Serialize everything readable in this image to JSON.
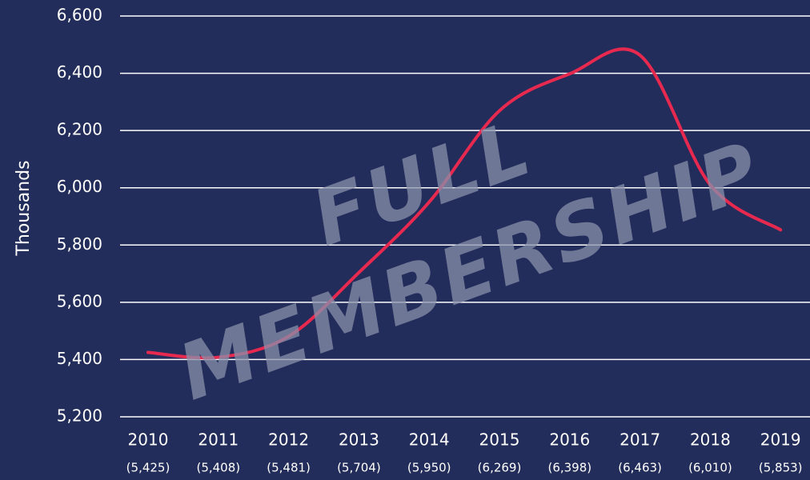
{
  "chart_data": {
    "type": "line",
    "axis_label_y": "Thousands",
    "annotations": [
      "FULL",
      "MEMBERSHIP"
    ],
    "categories": [
      "2010",
      "2011",
      "2012",
      "2013",
      "2014",
      "2015",
      "2016",
      "2017",
      "2018",
      "2019"
    ],
    "series": [
      {
        "name": "Full membership",
        "color": "#e8294f",
        "values": [
          5425,
          5408,
          5481,
          5704,
          5950,
          6269,
          6398,
          6463,
          6010,
          5853
        ],
        "value_labels": [
          "(5,425)",
          "(5,408)",
          "(5,481)",
          "(5,704)",
          "(5,950)",
          "(6,269)",
          "(6,398)",
          "(6,463)",
          "(6,010)",
          "(5,853)"
        ]
      }
    ],
    "ylim": [
      5200,
      6600
    ],
    "yticks": [
      {
        "value": 5200,
        "label": "5,200"
      },
      {
        "value": 5400,
        "label": "5,400"
      },
      {
        "value": 5600,
        "label": "5,600"
      },
      {
        "value": 5800,
        "label": "5,800"
      },
      {
        "value": 6000,
        "label": "6,000"
      },
      {
        "value": 6200,
        "label": "6,200"
      },
      {
        "value": 6400,
        "label": "6,400"
      },
      {
        "value": 6600,
        "label": "6,600"
      }
    ],
    "grid": true
  }
}
